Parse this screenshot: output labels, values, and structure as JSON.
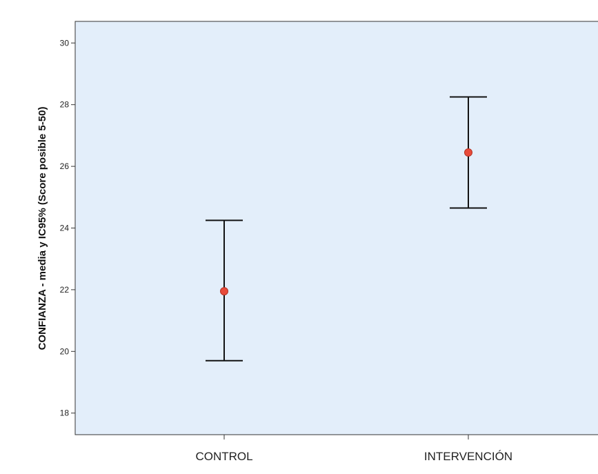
{
  "chart_data": {
    "type": "errorbar",
    "ylabel": "CONFIANZA - media y IC95% (Score posible 5-50)",
    "xlabel": "",
    "ylim": [
      17.3,
      30.7
    ],
    "yticks": [
      18,
      20,
      22,
      24,
      26,
      28,
      30
    ],
    "ytick_labels": [
      "18",
      "20",
      "22",
      "24",
      "26",
      "28",
      "30"
    ],
    "categories": [
      "CONTROL",
      "INTERVENCIÓN"
    ],
    "series": [
      {
        "mean": [
          21.95,
          26.45
        ],
        "ci_low": [
          19.7,
          24.65
        ],
        "ci_high": [
          24.25,
          28.25
        ]
      }
    ],
    "grid": false,
    "plot_background": "#e3eefa",
    "marker_color": "#e84b3a",
    "bar_color": "#111111"
  }
}
